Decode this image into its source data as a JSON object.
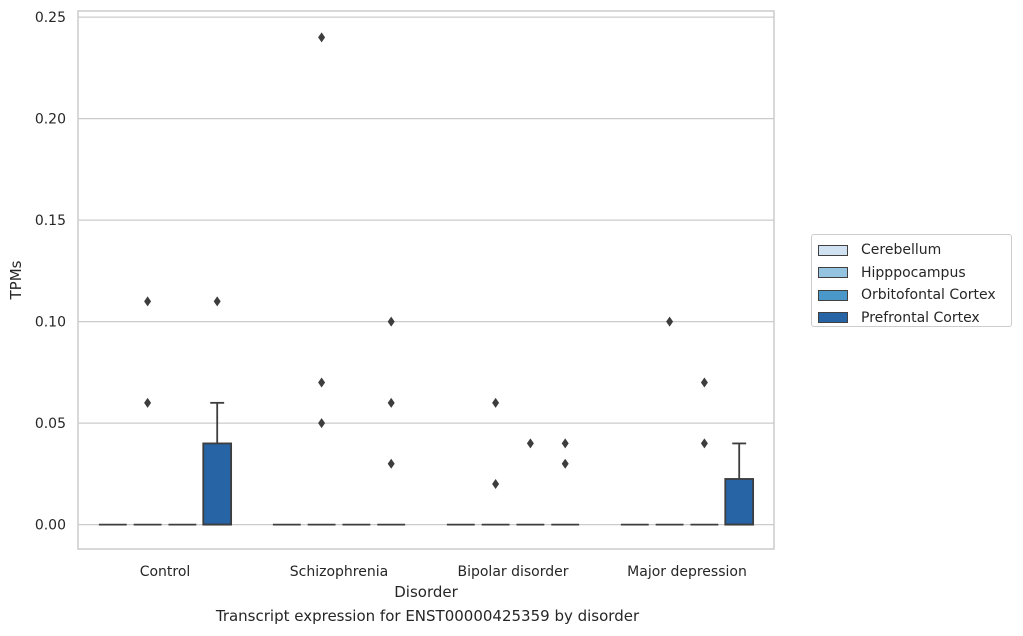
{
  "caption": "Transcript expression for ENST00000425359 by disorder",
  "chart_data": {
    "type": "box",
    "title": "",
    "xlabel": "Disorder",
    "ylabel": "TPMs",
    "ylim": [
      -0.012,
      0.253
    ],
    "yticks": [
      0.0,
      0.05,
      0.1,
      0.15,
      0.2,
      0.25
    ],
    "ytick_labels": [
      "0.00",
      "0.05",
      "0.10",
      "0.15",
      "0.20",
      "0.25"
    ],
    "grid": "horizontal",
    "legend_position": "outside-right",
    "categories": [
      "Control",
      "Schizophrenia",
      "Bipolar disorder",
      "Major depression"
    ],
    "series": [
      {
        "name": "Cerebellum",
        "color": "#d0e1f2",
        "boxes": [
          {
            "q1": 0,
            "median": 0,
            "q3": 0,
            "whisker_low": 0,
            "whisker_high": 0,
            "outliers": []
          },
          {
            "q1": 0,
            "median": 0,
            "q3": 0,
            "whisker_low": 0,
            "whisker_high": 0,
            "outliers": []
          },
          {
            "q1": 0,
            "median": 0,
            "q3": 0,
            "whisker_low": 0,
            "whisker_high": 0,
            "outliers": []
          },
          {
            "q1": 0,
            "median": 0,
            "q3": 0,
            "whisker_low": 0,
            "whisker_high": 0,
            "outliers": []
          }
        ]
      },
      {
        "name": "Hipppocampus",
        "color": "#94c4df",
        "boxes": [
          {
            "q1": 0,
            "median": 0,
            "q3": 0,
            "whisker_low": 0,
            "whisker_high": 0,
            "outliers": [
              0.11,
              0.06
            ]
          },
          {
            "q1": 0,
            "median": 0,
            "q3": 0,
            "whisker_low": 0,
            "whisker_high": 0,
            "outliers": [
              0.24,
              0.07,
              0.05
            ]
          },
          {
            "q1": 0,
            "median": 0,
            "q3": 0,
            "whisker_low": 0,
            "whisker_high": 0,
            "outliers": [
              0.06,
              0.02
            ]
          },
          {
            "q1": 0,
            "median": 0,
            "q3": 0,
            "whisker_low": 0,
            "whisker_high": 0,
            "outliers": [
              0.1
            ]
          }
        ]
      },
      {
        "name": "Orbitofontal Cortex",
        "color": "#4a98c9",
        "boxes": [
          {
            "q1": 0,
            "median": 0,
            "q3": 0,
            "whisker_low": 0,
            "whisker_high": 0,
            "outliers": []
          },
          {
            "q1": 0,
            "median": 0,
            "q3": 0,
            "whisker_low": 0,
            "whisker_high": 0,
            "outliers": []
          },
          {
            "q1": 0,
            "median": 0,
            "q3": 0,
            "whisker_low": 0,
            "whisker_high": 0,
            "outliers": [
              0.04
            ]
          },
          {
            "q1": 0,
            "median": 0,
            "q3": 0,
            "whisker_low": 0,
            "whisker_high": 0,
            "outliers": [
              0.07,
              0.04
            ]
          }
        ]
      },
      {
        "name": "Prefrontal Cortex",
        "color": "#2664a5",
        "boxes": [
          {
            "q1": 0,
            "median": 0,
            "q3": 0.04,
            "whisker_low": 0,
            "whisker_high": 0.06,
            "outliers": [
              0.11
            ]
          },
          {
            "q1": 0,
            "median": 0,
            "q3": 0,
            "whisker_low": 0,
            "whisker_high": 0,
            "outliers": [
              0.1,
              0.06,
              0.03
            ]
          },
          {
            "q1": 0,
            "median": 0,
            "q3": 0,
            "whisker_low": 0,
            "whisker_high": 0,
            "outliers": [
              0.04,
              0.03
            ]
          },
          {
            "q1": 0,
            "median": 0,
            "q3": 0.0225,
            "whisker_low": 0,
            "whisker_high": 0.04,
            "outliers": []
          }
        ]
      }
    ]
  }
}
